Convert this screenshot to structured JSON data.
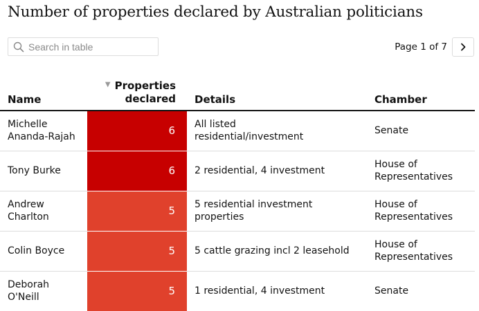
{
  "title": "Number of properties declared by Australian politicians",
  "search": {
    "placeholder": "Search in table",
    "value": ""
  },
  "pagination": {
    "label": "Page 1 of 7",
    "next_icon": "chevron-right-icon"
  },
  "table": {
    "columns": {
      "name": "Name",
      "properties_line1": "Properties",
      "properties_line2": "declared",
      "details": "Details",
      "chamber": "Chamber"
    },
    "sort_indicator": "▼",
    "colors": {
      "six": "#c70000",
      "five": "#e0412c"
    },
    "rows": [
      {
        "name_line1": "Michelle",
        "name_line2": "Ananda-Rajah",
        "properties": "6",
        "details_line1": "All listed",
        "details_line2": "residential/investment",
        "chamber_line1": "Senate",
        "chamber_line2": ""
      },
      {
        "name_line1": "Tony Burke",
        "name_line2": "",
        "properties": "6",
        "details_line1": "2 residential, 4 investment",
        "details_line2": "",
        "chamber_line1": "House of",
        "chamber_line2": "Representatives"
      },
      {
        "name_line1": "Andrew",
        "name_line2": "Charlton",
        "properties": "5",
        "details_line1": "5 residential investment",
        "details_line2": "properties",
        "chamber_line1": "House of",
        "chamber_line2": "Representatives"
      },
      {
        "name_line1": "Colin Boyce",
        "name_line2": "",
        "properties": "5",
        "details_line1": "5 cattle grazing incl 2 leasehold",
        "details_line2": "",
        "chamber_line1": "House of",
        "chamber_line2": "Representatives"
      },
      {
        "name_line1": "Deborah",
        "name_line2": "O'Neill",
        "properties": "5",
        "details_line1": "1 residential, 4 investment",
        "details_line2": "",
        "chamber_line1": "Senate",
        "chamber_line2": ""
      }
    ]
  }
}
